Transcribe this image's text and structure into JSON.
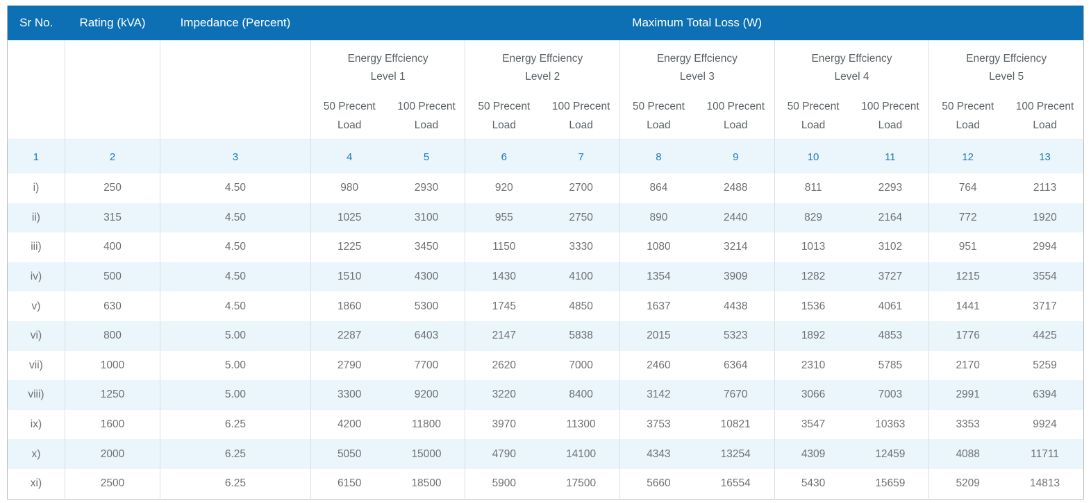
{
  "chart_data": {
    "type": "table",
    "header": {
      "sr_no": "Sr No.",
      "rating": "Rating (kVA)",
      "impedance": "Impedance (Percent)",
      "max_total_loss": "Maximum Total Loss (W)"
    },
    "levels": [
      "Energy Effciency\nLevel 1",
      "Energy Effciency\nLevel 2",
      "Energy Effciency\nLevel 3",
      "Energy Effciency\nLevel 4",
      "Energy Effciency\nLevel 5"
    ],
    "load_labels": [
      "50 Precent\nLoad",
      "100 Precent\nLoad"
    ],
    "column_numbers": [
      "1",
      "2",
      "3",
      "4",
      "5",
      "6",
      "7",
      "8",
      "9",
      "10",
      "11",
      "12",
      "13"
    ],
    "rows": [
      {
        "sr": "i)",
        "rating": "250",
        "impedance": "4.50",
        "losses": [
          "980",
          "2930",
          "920",
          "2700",
          "864",
          "2488",
          "811",
          "2293",
          "764",
          "2113"
        ]
      },
      {
        "sr": "ii)",
        "rating": "315",
        "impedance": "4.50",
        "losses": [
          "1025",
          "3100",
          "955",
          "2750",
          "890",
          "2440",
          "829",
          "2164",
          "772",
          "1920"
        ]
      },
      {
        "sr": "iii)",
        "rating": "400",
        "impedance": "4.50",
        "losses": [
          "1225",
          "3450",
          "1150",
          "3330",
          "1080",
          "3214",
          "1013",
          "3102",
          "951",
          "2994"
        ]
      },
      {
        "sr": "iv)",
        "rating": "500",
        "impedance": "4.50",
        "losses": [
          "1510",
          "4300",
          "1430",
          "4100",
          "1354",
          "3909",
          "1282",
          "3727",
          "1215",
          "3554"
        ]
      },
      {
        "sr": "v)",
        "rating": "630",
        "impedance": "4.50",
        "losses": [
          "1860",
          "5300",
          "1745",
          "4850",
          "1637",
          "4438",
          "1536",
          "4061",
          "1441",
          "3717"
        ]
      },
      {
        "sr": "vi)",
        "rating": "800",
        "impedance": "5.00",
        "losses": [
          "2287",
          "6403",
          "2147",
          "5838",
          "2015",
          "5323",
          "1892",
          "4853",
          "1776",
          "4425"
        ]
      },
      {
        "sr": "vii)",
        "rating": "1000",
        "impedance": "5.00",
        "losses": [
          "2790",
          "7700",
          "2620",
          "7000",
          "2460",
          "6364",
          "2310",
          "5785",
          "2170",
          "5259"
        ]
      },
      {
        "sr": "viii)",
        "rating": "1250",
        "impedance": "5.00",
        "losses": [
          "3300",
          "9200",
          "3220",
          "8400",
          "3142",
          "7670",
          "3066",
          "7003",
          "2991",
          "6394"
        ]
      },
      {
        "sr": "ix)",
        "rating": "1600",
        "impedance": "6.25",
        "losses": [
          "4200",
          "11800",
          "3970",
          "11300",
          "3753",
          "10821",
          "3547",
          "10363",
          "3353",
          "9924"
        ]
      },
      {
        "sr": "x)",
        "rating": "2000",
        "impedance": "6.25",
        "losses": [
          "5050",
          "15000",
          "4790",
          "14100",
          "4343",
          "13254",
          "4309",
          "12459",
          "4088",
          "11711"
        ]
      },
      {
        "sr": "xi)",
        "rating": "2500",
        "impedance": "6.25",
        "losses": [
          "6150",
          "18500",
          "5900",
          "17500",
          "5660",
          "16554",
          "5430",
          "15659",
          "5209",
          "14813"
        ]
      }
    ]
  },
  "colors": {
    "header_bg": "#0d70b4",
    "header_text": "#ffffff",
    "band_bg": "#eaf5fc",
    "column_number_text": "#1a7bbd",
    "subheader_text": "#5b6266",
    "data_text": "#6e7174",
    "grid_border": "#d9e0e3",
    "outer_border": "#b7bcbe"
  }
}
